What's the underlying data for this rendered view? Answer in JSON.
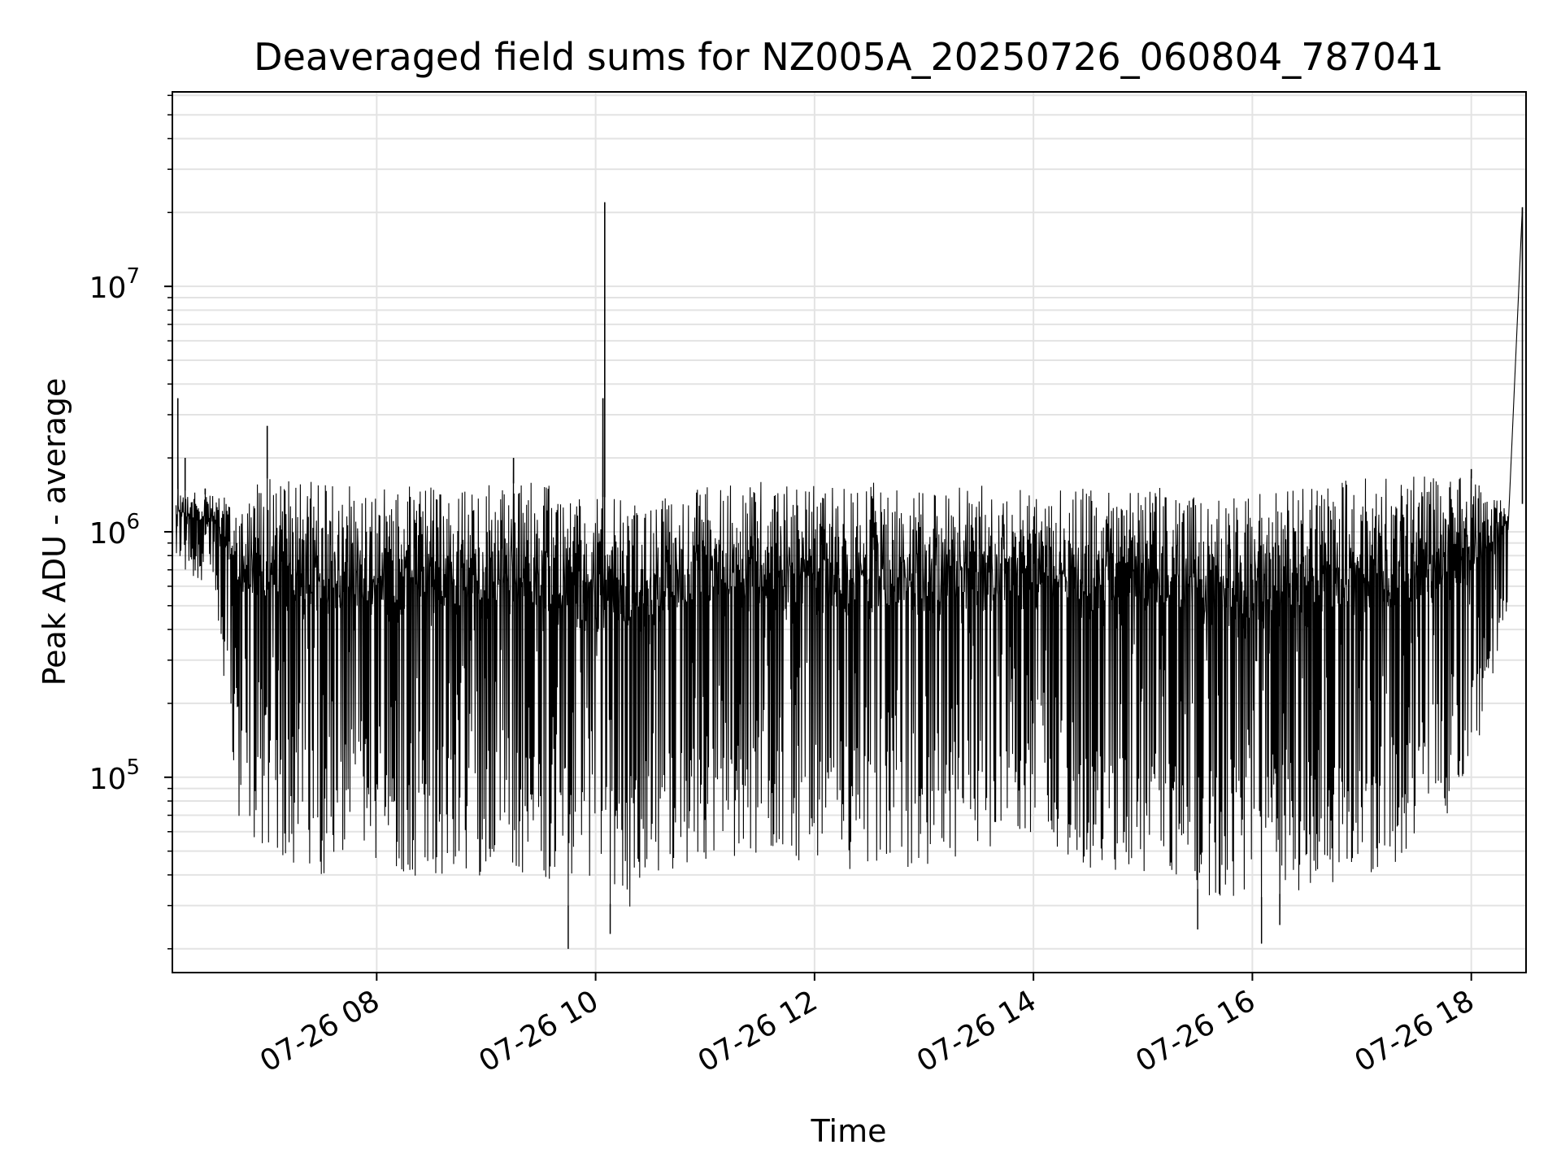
{
  "chart_data": {
    "type": "line",
    "title": "Deaveraged field sums for NZ005A_20250726_060804_787041",
    "xlabel": "Time",
    "ylabel": "Peak ADU - average",
    "x_scale": "time",
    "y_scale": "log",
    "xlim": [
      "2025-07-26T06:08",
      "2025-07-26T18:30"
    ],
    "ylim": [
      16000,
      62000000
    ],
    "grid": true,
    "x_ticks": [
      {
        "t": "2025-07-26T08:00",
        "label": "07-26 08"
      },
      {
        "t": "2025-07-26T10:00",
        "label": "07-26 10"
      },
      {
        "t": "2025-07-26T12:00",
        "label": "07-26 12"
      },
      {
        "t": "2025-07-26T14:00",
        "label": "07-26 14"
      },
      {
        "t": "2025-07-26T16:00",
        "label": "07-26 16"
      },
      {
        "t": "2025-07-26T18:00",
        "label": "07-26 18"
      }
    ],
    "y_ticks": [
      {
        "value": 100000,
        "base": "10",
        "exp": "5"
      },
      {
        "value": 1000000,
        "base": "10",
        "exp": "6"
      },
      {
        "value": 10000000,
        "base": "10",
        "exp": "7"
      }
    ],
    "series": [
      {
        "color": "#000000",
        "envelope": {
          "note_type": "min_max",
          "x": [
            "2025-07-26T06:10",
            "2025-07-26T06:30",
            "2025-07-26T06:45",
            "2025-07-26T07:00",
            "2025-07-26T07:30",
            "2025-07-26T08:00",
            "2025-07-26T08:30",
            "2025-07-26T09:00",
            "2025-07-26T09:30",
            "2025-07-26T09:45",
            "2025-07-26T10:00",
            "2025-07-26T10:15",
            "2025-07-26T10:30",
            "2025-07-26T11:00",
            "2025-07-26T11:30",
            "2025-07-26T12:00",
            "2025-07-26T12:30",
            "2025-07-26T13:00",
            "2025-07-26T13:30",
            "2025-07-26T14:00",
            "2025-07-26T14:30",
            "2025-07-26T15:00",
            "2025-07-26T15:30",
            "2025-07-26T15:45",
            "2025-07-26T16:00",
            "2025-07-26T16:30",
            "2025-07-26T17:00",
            "2025-07-26T17:30",
            "2025-07-26T18:00",
            "2025-07-26T18:20"
          ],
          "high": [
            1500000,
            1400000,
            1600000,
            1650000,
            1600000,
            1500000,
            1550000,
            1550000,
            1600000,
            1500000,
            1400000,
            1350000,
            1400000,
            1550000,
            1600000,
            1550000,
            1600000,
            1600000,
            1550000,
            1500000,
            1500000,
            1500000,
            1550000,
            1450000,
            1450000,
            1600000,
            1650000,
            1700000,
            1650000,
            1300000
          ],
          "low": [
            700000,
            600000,
            60000,
            45000,
            40000,
            40000,
            38000,
            40000,
            40000,
            30000,
            35000,
            27000,
            40000,
            45000,
            48000,
            45000,
            40000,
            40000,
            50000,
            60000,
            40000,
            38000,
            35000,
            30000,
            32000,
            35000,
            40000,
            45000,
            100000,
            500000
          ]
        },
        "spikes": [
          {
            "x": "2025-07-26T06:11",
            "y": 3500000
          },
          {
            "x": "2025-07-26T06:15",
            "y": 2000000
          },
          {
            "x": "2025-07-26T06:26",
            "y": 1500000
          },
          {
            "x": "2025-07-26T07:00",
            "y": 2700000
          },
          {
            "x": "2025-07-26T09:15",
            "y": 2000000
          },
          {
            "x": "2025-07-26T10:04",
            "y": 3500000
          },
          {
            "x": "2025-07-26T10:05",
            "y": 22000000
          },
          {
            "x": "2025-07-26T18:00",
            "y": 1800000
          },
          {
            "x": "2025-07-26T18:28",
            "y": 21000000
          }
        ],
        "dips": [
          {
            "x": "2025-07-26T09:45",
            "y": 20000
          },
          {
            "x": "2025-07-26T10:08",
            "y": 23000
          },
          {
            "x": "2025-07-26T15:30",
            "y": 24000
          },
          {
            "x": "2025-07-26T16:05",
            "y": 21000
          },
          {
            "x": "2025-07-26T16:15",
            "y": 25000
          }
        ]
      }
    ]
  }
}
